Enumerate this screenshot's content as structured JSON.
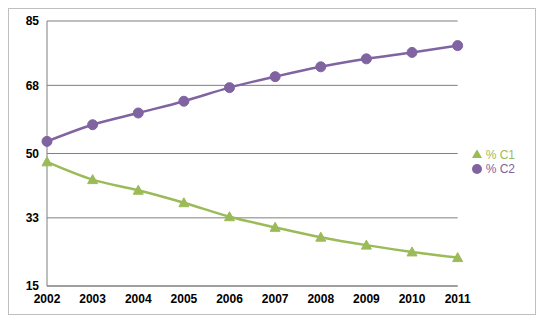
{
  "chart_data": {
    "type": "line",
    "categories": [
      "2002",
      "2003",
      "2004",
      "2005",
      "2006",
      "2007",
      "2008",
      "2009",
      "2010",
      "2011"
    ],
    "series": [
      {
        "name": "% C1",
        "color": "#9bbb59",
        "marker": "triangle",
        "values": [
          47.8,
          43.1,
          40.3,
          37,
          33.3,
          30.5,
          27.9,
          25.8,
          24,
          22.5
        ]
      },
      {
        "name": "% C2",
        "color": "#8064a2",
        "marker": "circle",
        "values": [
          53.2,
          57.6,
          60.7,
          63.8,
          67.4,
          70.3,
          72.9,
          75,
          76.7,
          78.5
        ]
      }
    ],
    "ylim": [
      15,
      85
    ],
    "yticks": [
      15,
      33,
      50,
      68,
      85
    ],
    "grid": true,
    "legend": "right"
  }
}
